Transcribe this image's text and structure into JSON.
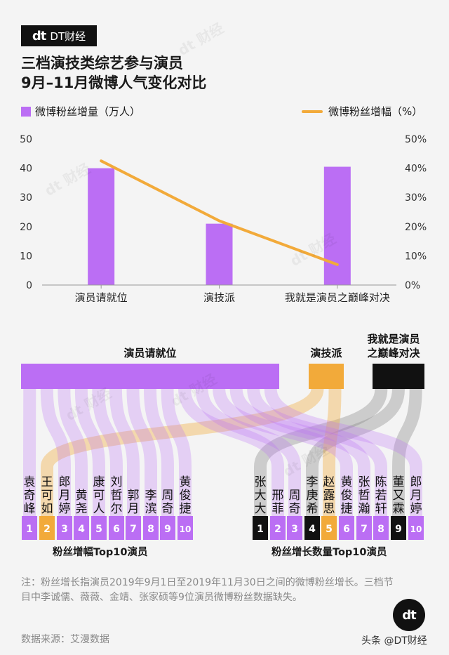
{
  "brand": {
    "logo_mark": "dt",
    "logo_text": "DT财经"
  },
  "title": {
    "line1": "三档演技类综艺参与演员",
    "line2": "9月–11月微博人气变化对比"
  },
  "legend": {
    "bar_label": "微博粉丝增量（万人）",
    "line_label": "微博粉丝增幅（%）"
  },
  "colors": {
    "purple": "#bb6ef4",
    "orange": "#f2aa3a",
    "black": "#111111",
    "light_purple": "#d8b4fb"
  },
  "chart_data": [
    {
      "type": "bar+line",
      "categories": [
        "演员请就位",
        "演技派",
        "我就是演员之巅峰对决"
      ],
      "series": [
        {
          "name": "微博粉丝增量（万人）",
          "type": "bar",
          "axis": "left",
          "values": [
            40,
            21,
            40.5
          ]
        },
        {
          "name": "微博粉丝增幅（%）",
          "type": "line",
          "axis": "right",
          "values": [
            42.5,
            22,
            7
          ]
        }
      ],
      "y_left": {
        "ticks": [
          "0",
          "10",
          "20",
          "30",
          "40",
          "50"
        ],
        "range": [
          0,
          50
        ]
      },
      "y_right": {
        "ticks": [
          "0%",
          "10%",
          "20%",
          "30%",
          "40%",
          "50%"
        ],
        "range": [
          0,
          50
        ]
      },
      "grid": false
    },
    {
      "type": "sankey",
      "sources": [
        {
          "name": "演员请就位",
          "color": "purple"
        },
        {
          "name": "演技派",
          "color": "orange"
        },
        {
          "name": "我就是演员\n之巅峰对决",
          "color": "black"
        }
      ],
      "top10_growth_rate": {
        "caption": "粉丝增幅Top10演员",
        "actors": [
          {
            "rank": "1",
            "name": "袁奇峰",
            "show": "演员请就位"
          },
          {
            "rank": "2",
            "name": "王可如",
            "show": "演技派"
          },
          {
            "rank": "3",
            "name": "郎月婷",
            "show": "演员请就位"
          },
          {
            "rank": "4",
            "name": "黄尧",
            "show": "演员请就位"
          },
          {
            "rank": "5",
            "name": "康可人",
            "show": "演员请就位"
          },
          {
            "rank": "6",
            "name": "刘哲尔",
            "show": "演员请就位"
          },
          {
            "rank": "7",
            "name": "郭月",
            "show": "演员请就位"
          },
          {
            "rank": "8",
            "name": "李滨",
            "show": "演员请就位"
          },
          {
            "rank": "9",
            "name": "周奇",
            "show": "演员请就位"
          },
          {
            "rank": "10",
            "name": "黄俊捷",
            "show": "演员请就位"
          }
        ]
      },
      "top10_growth_count": {
        "caption": "粉丝增长数量Top10演员",
        "actors": [
          {
            "rank": "1",
            "name": "张大大",
            "show": "我就是演员之巅峰对决"
          },
          {
            "rank": "2",
            "name": "邢菲",
            "show": "演员请就位"
          },
          {
            "rank": "3",
            "name": "周奇",
            "show": "演员请就位"
          },
          {
            "rank": "4",
            "name": "李庚希",
            "show": "我就是演员之巅峰对决"
          },
          {
            "rank": "5",
            "name": "赵露思",
            "show": "演技派"
          },
          {
            "rank": "6",
            "name": "黄俊捷",
            "show": "演员请就位"
          },
          {
            "rank": "7",
            "name": "张哲瀚",
            "show": "演员请就位"
          },
          {
            "rank": "8",
            "name": "陈若轩",
            "show": "演员请就位"
          },
          {
            "rank": "9",
            "name": "董又霖",
            "show": "我就是演员之巅峰对决"
          },
          {
            "rank": "10",
            "name": "郎月婷",
            "show": "演员请就位"
          }
        ]
      }
    }
  ],
  "note": "注：粉丝增长指演员2019年9月1日至2019年11月30日之间的微博粉丝增长。三档节目中李诚儒、薇薇、金靖、张家硕等9位演员微博粉丝数据缺失。",
  "source": "数据来源：艾漫数据",
  "corner_logo": "dt",
  "footer_brand": "头条 @DT财经",
  "watermark": "dt 财经"
}
